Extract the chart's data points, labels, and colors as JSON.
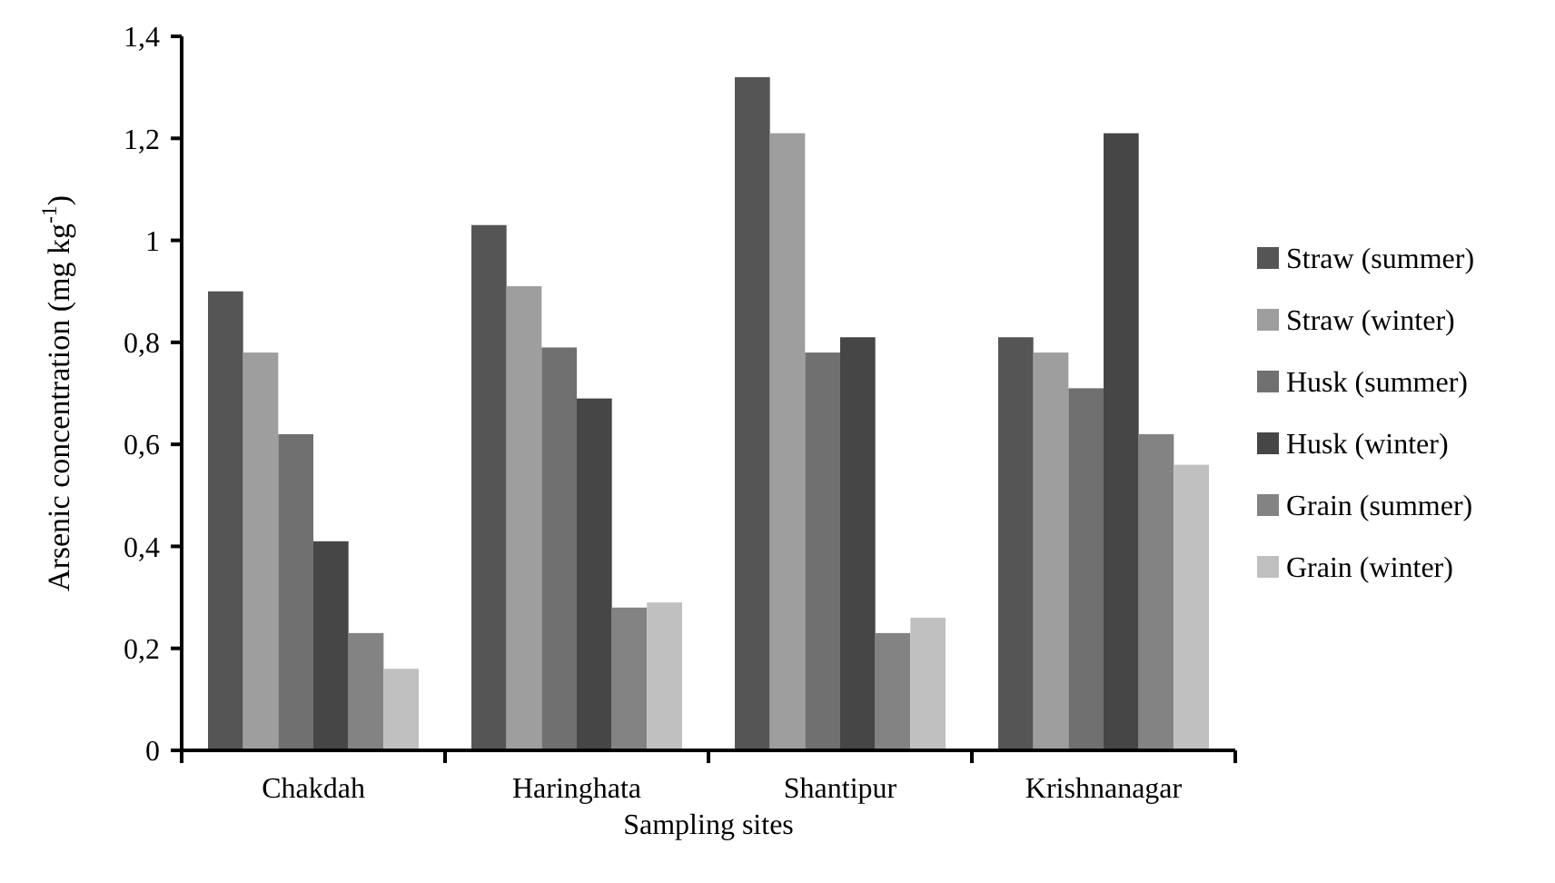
{
  "chart_data": {
    "type": "bar",
    "xlabel": "Sampling sites",
    "ylabel": "Arsenic concentration (mg kg$^{-1}$)",
    "categories": [
      "Chakdah",
      "Haringhata",
      "Shantipur",
      "Krishnanagar"
    ],
    "series": [
      {
        "name": "Straw (summer)",
        "color": "#555555",
        "values": [
          0.9,
          1.03,
          1.32,
          0.81
        ]
      },
      {
        "name": "Straw (winter)",
        "color": "#9e9e9e",
        "values": [
          0.78,
          0.91,
          1.21,
          0.78
        ]
      },
      {
        "name": "Husk (summer)",
        "color": "#707070",
        "values": [
          0.62,
          0.79,
          0.78,
          0.71
        ]
      },
      {
        "name": "Husk (winter)",
        "color": "#464646",
        "values": [
          0.41,
          0.69,
          0.81,
          1.21
        ]
      },
      {
        "name": "Grain (summer)",
        "color": "#838383",
        "values": [
          0.23,
          0.28,
          0.23,
          0.62
        ]
      },
      {
        "name": "Grain (winter)",
        "color": "#c0c0c0",
        "values": [
          0.16,
          0.29,
          0.26,
          0.56
        ]
      }
    ],
    "ylim": [
      0,
      1.4
    ],
    "yticks": [
      0,
      {
        "value": 0.2,
        "label": "0,2"
      },
      {
        "value": 0.4,
        "label": "0,4"
      },
      {
        "value": 0.6,
        "label": "0,6"
      },
      {
        "value": 0.8,
        "label": "0,8"
      },
      1,
      {
        "value": 1.2,
        "label": "1,2"
      },
      {
        "value": 1.4,
        "label": "1,4"
      }
    ],
    "grid": false,
    "legend": "right"
  }
}
